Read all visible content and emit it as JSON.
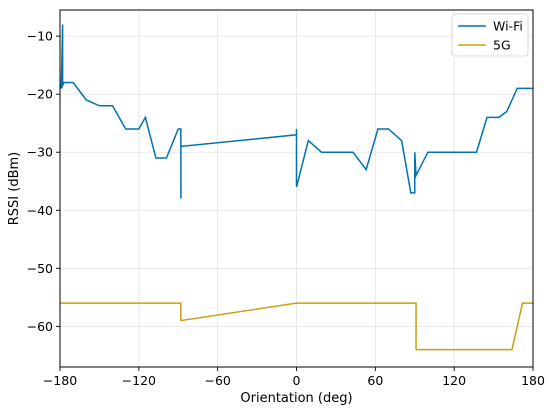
{
  "chart_data": {
    "type": "line",
    "title": "",
    "xlabel": "Orientation (deg)",
    "ylabel": "RSSI (dBm)",
    "xlim": [
      -180,
      180
    ],
    "ylim": [
      -67,
      -5.5
    ],
    "xticks": [
      -180,
      -120,
      -60,
      0,
      60,
      120,
      180
    ],
    "xtick_labels": [
      "−180",
      "−120",
      "−60",
      "0",
      "60",
      "120",
      "180"
    ],
    "yticks": [
      -60,
      -50,
      -40,
      -30,
      -20,
      -10
    ],
    "ytick_labels": [
      "−60",
      "−50",
      "−40",
      "−30",
      "−20",
      "−10"
    ],
    "grid": true,
    "legend_position": "top-right",
    "series": [
      {
        "name": "Wi-Fi",
        "color": "#0072b2",
        "x": [
          -180,
          -178,
          -178,
          -179,
          -177,
          -170,
          -160,
          -150,
          -140,
          -130,
          -120,
          -115,
          -107,
          -99,
          -90,
          -88,
          -88,
          -88,
          0,
          0,
          0,
          9,
          19,
          43,
          53,
          62,
          70,
          80,
          87,
          90,
          90,
          91,
          91,
          100,
          137,
          145,
          154,
          160,
          168,
          175,
          180
        ],
        "y": [
          -19,
          -18.2,
          -8,
          -19,
          -18,
          -18,
          -21,
          -22,
          -22,
          -26,
          -26,
          -24,
          -31,
          -31,
          -26,
          -26,
          -38,
          -29,
          -27,
          -26,
          -36,
          -28,
          -30,
          -30,
          -33,
          -26,
          -26,
          -28,
          -37,
          -37,
          -30,
          -34,
          -34,
          -30,
          -30,
          -24,
          -24,
          -23,
          -19,
          -19,
          -19
        ]
      },
      {
        "name": "5G",
        "color": "#c8a010",
        "x": [
          -180,
          -88,
          -88,
          0,
          91,
          91,
          164,
          172,
          180
        ],
        "y": [
          -56,
          -56,
          -59,
          -56,
          -56,
          -64,
          -64,
          -56,
          -56
        ]
      }
    ]
  }
}
